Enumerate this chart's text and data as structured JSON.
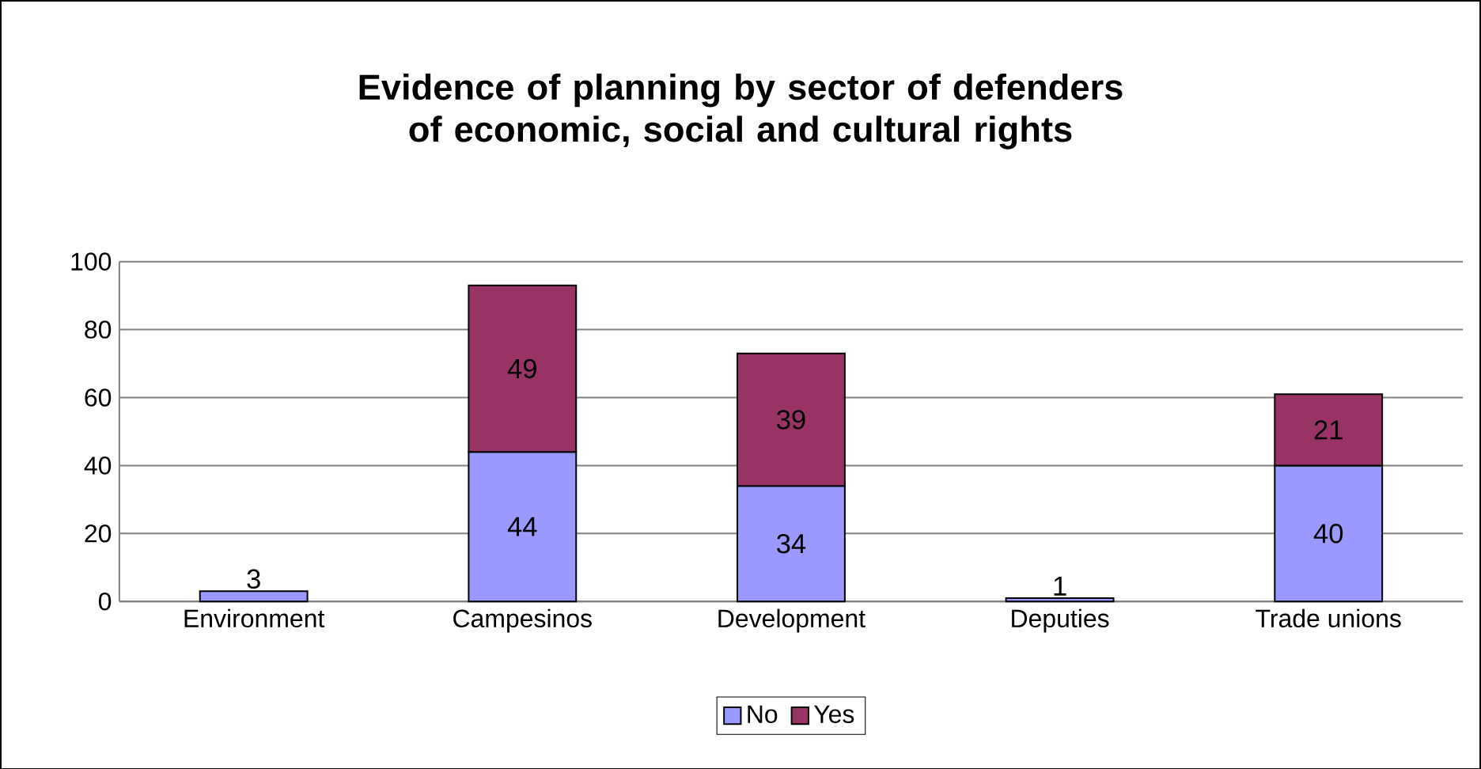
{
  "chart_data": {
    "type": "bar",
    "title": "Evidence of planning by sector of defenders of economic, social and cultural rights",
    "categories": [
      "Environment",
      "Campesinos",
      "Development",
      "Deputies",
      "Trade unions"
    ],
    "series": [
      {
        "name": "No",
        "color": "#9999ff",
        "values": [
          3,
          44,
          34,
          1,
          40
        ]
      },
      {
        "name": "Yes",
        "color": "#993366",
        "values": [
          null,
          49,
          39,
          null,
          21
        ]
      }
    ],
    "stacked": true,
    "data_labels": true,
    "ylim": [
      0,
      100
    ],
    "yticks": [
      0,
      20,
      40,
      60,
      80,
      100
    ],
    "grid": "y",
    "legend": "bottom"
  }
}
